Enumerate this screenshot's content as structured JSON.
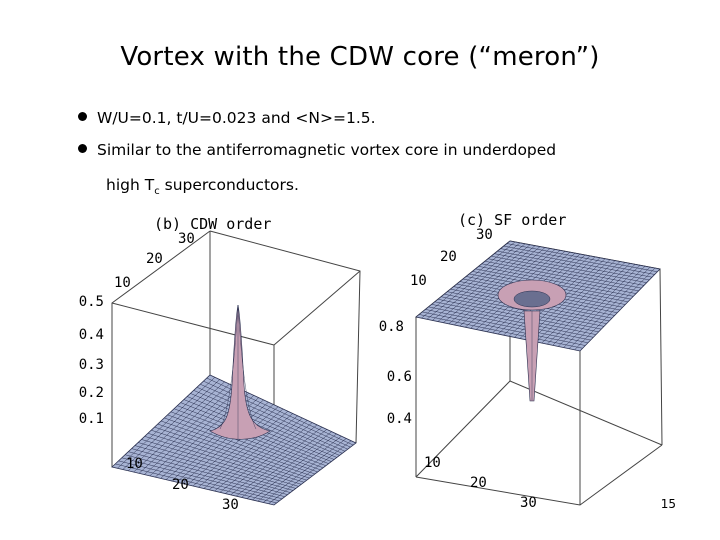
{
  "slide": {
    "title": "Vortex with the CDW core  (“meron”)",
    "bullets": [
      "W/U=0.1, t/U=0.023 and <N>=1.5.",
      "Similar to the antiferromagnetic vortex core in underdoped"
    ],
    "continuation_pre": "high T",
    "continuation_sub": "c",
    "continuation_post": " superconductors.",
    "page_number": "15"
  },
  "plot_b": {
    "label": "(b) CDW order",
    "z_ticks": [
      "0.5",
      "0.4",
      "0.3",
      "0.2",
      "0.1"
    ],
    "back_ticks": [
      "30",
      "20",
      "10"
    ],
    "front_ticks": [
      "10",
      "20",
      "30"
    ],
    "colors": {
      "surface": "#a7b3d3",
      "peak": "#c8a0b4",
      "grid": "#2a3050"
    }
  },
  "plot_c": {
    "label": "(c) SF order",
    "z_ticks": [
      "0.8",
      "0.6",
      "0.4"
    ],
    "back_ticks": [
      "30",
      "20",
      "10"
    ],
    "front_ticks": [
      "10",
      "20",
      "30"
    ],
    "colors": {
      "surface": "#a7b3d3",
      "dip": "#c8a0b4",
      "grid": "#2a3050"
    }
  }
}
